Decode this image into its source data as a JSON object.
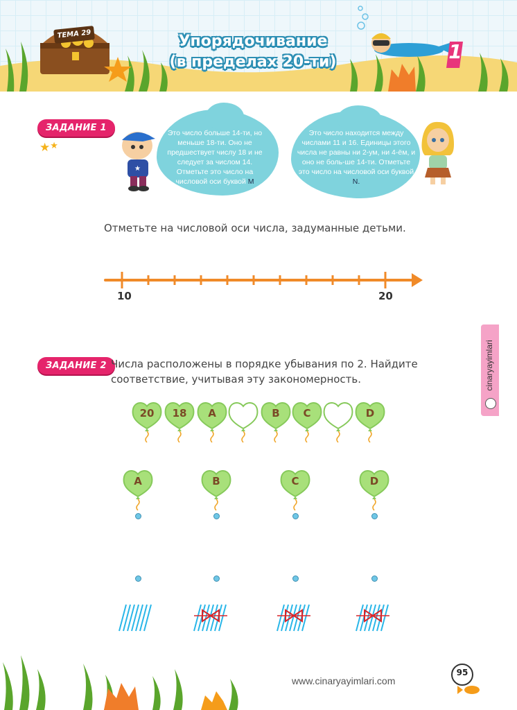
{
  "header": {
    "topic": "ТЕМА 29",
    "title_line1": "Упорядочивание",
    "title_line2": "(в пределах 20-ти)",
    "unit_number": "1"
  },
  "task1": {
    "badge": "ЗАДАНИЕ 1",
    "difficulty_stars": 2,
    "boy_bubble": {
      "text": "Это число больше 14-ти, но меньше 18-ти. Оно не предшествует числу 18 и не следует за числом 14. Отметьте это число на числовой оси буквой",
      "letter": "M"
    },
    "girl_bubble": {
      "text": "Это число находится между числами 11 и 16. Единицы этого числа не равны ни 2-ум, ни 4-ём, и оно не боль-ше 14-ти. Отметьте это число на числовой оси буквой",
      "letter": "N."
    },
    "instruction": "Отметьте на числовой оси числа, задуманные детьми.",
    "number_line": {
      "start_label": "10",
      "end_label": "20",
      "ticks": 11
    }
  },
  "task2": {
    "badge": "ЗАДАНИЕ 2",
    "instruction_line1": "Числа расположены в порядке убывания по 2. Найдите",
    "instruction_line2": "соответствие, учитывая эту закономерность.",
    "sequence": [
      "20",
      "18",
      "A",
      "",
      "B",
      "C",
      "",
      "D"
    ],
    "answer_balloons": [
      "A",
      "B",
      "C",
      "D"
    ]
  },
  "side_tab": {
    "text": "cinaryayimlari"
  },
  "footer": {
    "url": "www.cinaryayimlari.com",
    "page_number": "95"
  },
  "colors": {
    "balloon_green": "#a8e07a",
    "badge_pink": "#e5246b",
    "line_orange": "#f08a28",
    "cloud_blue": "#7fd3dd",
    "hatch_blue": "#29b6e8",
    "bow_red": "#d8262b"
  }
}
